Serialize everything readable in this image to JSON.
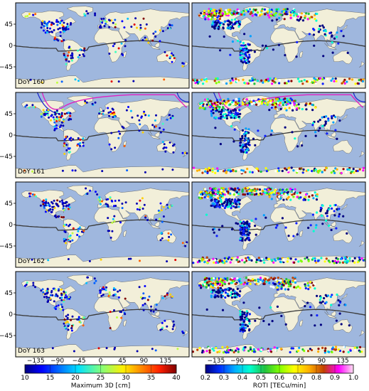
{
  "panels": [
    {
      "doy": "DoY 160"
    },
    {
      "doy": "DoY 161"
    },
    {
      "doy": "DoY 162"
    },
    {
      "doy": "DoY 163"
    }
  ],
  "y_ticks": [
    "45",
    "0",
    "−45"
  ],
  "x_ticks": [
    "−135",
    "−90",
    "−45",
    "0",
    "45",
    "90",
    "135"
  ],
  "colorbar_left": {
    "label": "Maximum 3D [cm]",
    "ticks": [
      "10",
      "15",
      "20",
      "25",
      "30",
      "35",
      "40"
    ],
    "colormap": "jet"
  },
  "colorbar_right": {
    "label": "ROTI [TECu/min]",
    "ticks": [
      "0.2",
      "0.3",
      "0.4",
      "0.5",
      "0.6",
      "0.7",
      "0.8",
      "0.9",
      "1.0"
    ],
    "colormap": "gist_ncar"
  },
  "colors": {
    "ocean": "#9fb7de",
    "land": "#f2efd9",
    "terminator": "#3a3a3a",
    "aurora_magenta": "#e020c0",
    "aurora_blue": "#1f2ad0"
  }
}
